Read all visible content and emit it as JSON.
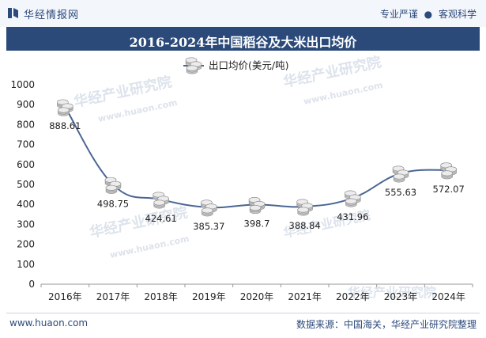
{
  "header": {
    "brand": "华经情报网",
    "tag_left": "专业严谨",
    "tag_sep": "●",
    "tag_right": "客观科学",
    "title": "2016-2024年中国稻谷及大米出口均价"
  },
  "footer": {
    "website": "www.huaon.com",
    "source": "数据来源：中国海关，华经产业研究院整理"
  },
  "watermark": {
    "text": "华经产业研究院",
    "url_text": "www.huaon.com"
  },
  "colors": {
    "line": "#4a6694",
    "title_bar": "#2b4a7a",
    "brand": "#2c4a7c"
  },
  "chart_data": {
    "type": "line",
    "title": "2016-2024年中国稻谷及大米出口均价",
    "categories": [
      "2016年",
      "2017年",
      "2018年",
      "2019年",
      "2020年",
      "2021年",
      "2022年",
      "2023年",
      "2024年"
    ],
    "series": [
      {
        "name": "出口均价(美元/吨)",
        "values": [
          888.61,
          498.75,
          424.61,
          385.37,
          398.7,
          388.84,
          431.96,
          555.63,
          572.07
        ]
      }
    ],
    "value_labels": [
      "888.61",
      "498.75",
      "424.61",
      "385.37",
      "398.7",
      "388.84",
      "431.96",
      "555.63",
      "572.07"
    ],
    "ylim": [
      0,
      1000
    ],
    "yticks": [
      0,
      100,
      200,
      300,
      400,
      500,
      600,
      700,
      800,
      900,
      1000
    ],
    "smooth": true,
    "legend_position": "top-center",
    "grid": false
  }
}
